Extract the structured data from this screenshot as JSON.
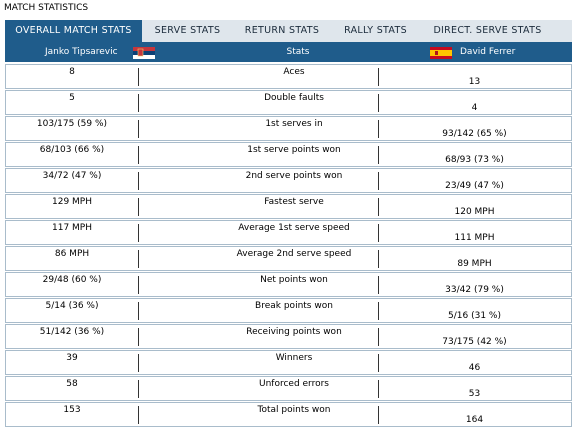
{
  "title": "MATCH STATISTICS",
  "tabs": [
    "OVERALL MATCH STATS",
    "SERVE STATS",
    "RETURN STATS",
    "RALLY STATS",
    "DIRECT. SERVE STATS"
  ],
  "table": {
    "header": [
      "Janko Tipsarevic",
      "Stats",
      "David Ferrer"
    ],
    "rows": [
      [
        "8",
        "Aces",
        "13"
      ],
      [
        "5",
        "Double faults",
        "4"
      ],
      [
        "103/175 (59 %)",
        "1st serves in",
        "93/142 (65 %)"
      ],
      [
        "68/103 (66 %)",
        "1st serve points won",
        "68/93 (73 %)"
      ],
      [
        "34/72 (47 %)",
        "2nd serve points won",
        "23/49 (47 %)"
      ],
      [
        "129 MPH",
        "Fastest serve",
        "120 MPH"
      ],
      [
        "117 MPH",
        "Average 1st serve speed",
        "111 MPH"
      ],
      [
        "86 MPH",
        "Average 2nd serve speed",
        "89 MPH"
      ],
      [
        "29/48 (60 %)",
        "Net points won",
        "33/42 (79 %)"
      ],
      [
        "5/14 (36 %)",
        "Break points won",
        "5/16 (31 %)"
      ],
      [
        "51/142 (36 %)",
        "Receiving points won",
        "73/175 (42 %)"
      ],
      [
        "39",
        "Winners",
        "46"
      ],
      [
        "58",
        "Unforced errors",
        "53"
      ],
      [
        "153",
        "Total points won",
        "164"
      ]
    ]
  }
}
